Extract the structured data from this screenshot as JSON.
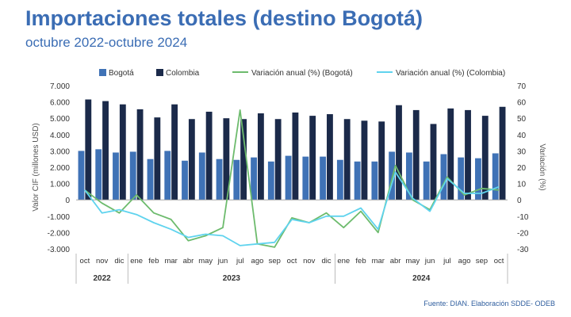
{
  "header": {
    "title": "Importaciones totales (destino Bogotá)",
    "subtitle": "octubre 2022-octubre 2024"
  },
  "footer": {
    "source": "Fuente: DIAN. Elaboración SDDE- ODEB"
  },
  "chart_data": {
    "type": "bar",
    "categories": [
      "oct",
      "nov",
      "dic",
      "ene",
      "feb",
      "mar",
      "abr",
      "may",
      "jun",
      "jul",
      "ago",
      "sep",
      "oct",
      "nov",
      "dic",
      "ene",
      "feb",
      "mar",
      "abr",
      "may",
      "jun",
      "jul",
      "ago",
      "sep",
      "oct"
    ],
    "year_groups": [
      {
        "label": "2022",
        "start": 0,
        "end": 2
      },
      {
        "label": "2023",
        "start": 3,
        "end": 14
      },
      {
        "label": "2024",
        "start": 15,
        "end": 24
      }
    ],
    "ylabel": "Valor CIF (millones USD)",
    "y2label": "Variación (%)",
    "ylim": [
      -3000,
      7000
    ],
    "y2lim": [
      -30,
      70
    ],
    "yticks": [
      "7.000",
      "6.000",
      "5.000",
      "4.000",
      "3.000",
      "2.000",
      "1.000",
      "0",
      "-1.000",
      "-2.000",
      "-3.000"
    ],
    "y2ticks": [
      "70",
      "60",
      "50",
      "40",
      "30",
      "20",
      "10",
      "0",
      "-10",
      "-20",
      "-30"
    ],
    "legend_position": "top",
    "colors": {
      "bogota_bar": "#3f72b6",
      "colombia_bar": "#1b2a4a",
      "var_bogota": "#6dbb6d",
      "var_colombia": "#5fd3ee"
    },
    "series": [
      {
        "name": "Bogotá",
        "kind": "bar",
        "axis": "left",
        "values": [
          3000,
          3100,
          2900,
          2950,
          2500,
          3000,
          2400,
          2900,
          2500,
          2450,
          2600,
          2350,
          2700,
          2650,
          2650,
          2450,
          2350,
          2350,
          2950,
          2900,
          2350,
          2800,
          2600,
          2550,
          2850
        ]
      },
      {
        "name": "Colombia",
        "kind": "bar",
        "axis": "left",
        "values": [
          6150,
          6050,
          5850,
          5550,
          5050,
          5850,
          4950,
          5400,
          5000,
          4950,
          5300,
          4950,
          5350,
          5150,
          5250,
          4950,
          4850,
          4800,
          5800,
          5500,
          4650,
          5600,
          5500,
          5150,
          5700
        ]
      },
      {
        "name": "Variación anual (%) (Bogotá)",
        "kind": "line",
        "axis": "right",
        "values": [
          6,
          -2,
          -8,
          3,
          -8,
          -12,
          -25,
          -22,
          -17,
          55,
          -27,
          -29,
          -11,
          -14,
          -8,
          -17,
          -7,
          -20,
          21,
          0,
          -6,
          14,
          3,
          7,
          6
        ]
      },
      {
        "name": "Variación anual (%) (Colombia)",
        "kind": "line",
        "axis": "right",
        "values": [
          6,
          -8,
          -6,
          -9,
          -14,
          -18,
          -23,
          -21,
          -22,
          -28,
          -27,
          -26,
          -12,
          -14,
          -10,
          -10,
          -5,
          -18,
          17,
          1,
          -7,
          13,
          4,
          4,
          8
        ]
      }
    ]
  }
}
